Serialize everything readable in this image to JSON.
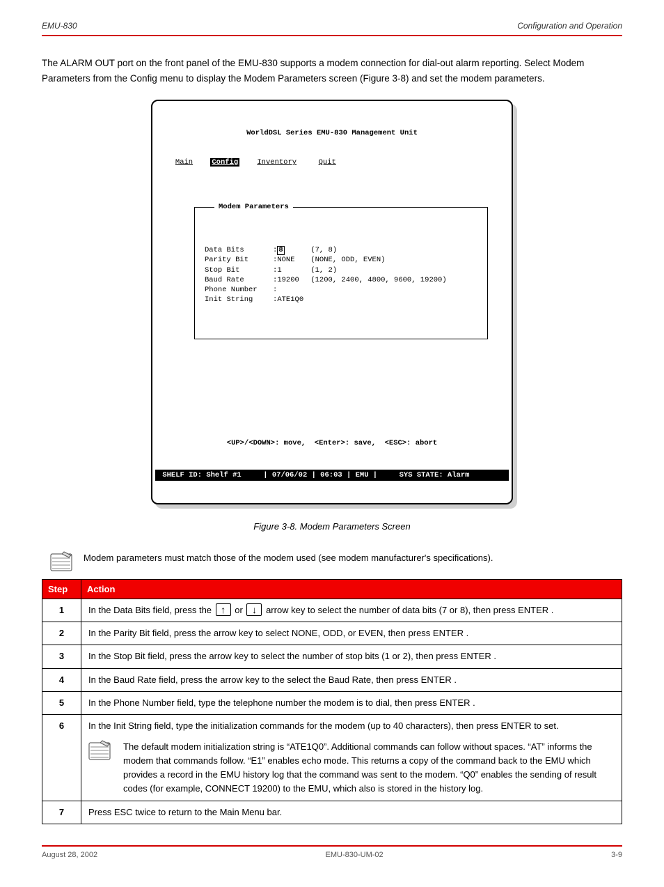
{
  "page": {
    "header_left": "EMU-830",
    "header_right": "Configuration and Operation",
    "footer_left": "August 28, 2002",
    "footer_center": "EMU-830-UM-02",
    "footer_right": "3-9"
  },
  "intro": "The ALARM OUT port on the front panel of the EMU-830 supports a modem connection for dial-out alarm reporting. Select Modem Parameters from the Config menu to display the Modem Parameters screen (Figure 3-8) and set the modem parameters.",
  "terminal": {
    "title": "WorldDSL Series EMU-830 Management Unit",
    "menu": {
      "main": "Main",
      "config": "Config",
      "inventory": "Inventory",
      "quit": "Quit"
    },
    "box_title": "Modem Parameters",
    "params": [
      {
        "label": "Data Bits",
        "value": "8",
        "hint": "(7, 8)"
      },
      {
        "label": "Parity Bit",
        "value": "NONE",
        "hint": "(NONE, ODD, EVEN)"
      },
      {
        "label": "Stop Bit",
        "value": "1",
        "hint": "(1, 2)"
      },
      {
        "label": "Baud Rate",
        "value": "19200",
        "hint": "(1200, 2400, 4800, 9600, 19200)"
      },
      {
        "label": "Phone Number",
        "value": "",
        "hint": ""
      },
      {
        "label": "Init String",
        "value": "ATE1Q0",
        "hint": ""
      }
    ],
    "keyhint": "<UP>/<DOWN>: move,  <Enter>: save,  <ESC>: abort",
    "status": {
      "shelf": "SHELF ID: Shelf #1",
      "date": "07/06/02",
      "time": "06:03",
      "emu": "EMU",
      "sys": "SYS STATE: Alarm"
    }
  },
  "figure_caption": "Figure 3-8.  Modem Parameters Screen",
  "note1": "Modem parameters must match those of the modem used (see modem manufacturer's specifications).",
  "table": {
    "headers": {
      "step": "Step",
      "action": "Action"
    },
    "rows": [
      {
        "n": "1",
        "action_html": "In the Data Bits field, press the <span class='arrow'>↑</span> or <span class='arrow'>↓</span> arrow key to select the number of data bits (7 or 8), then press <span class='sc'>ENTER</span> ."
      },
      {
        "n": "2",
        "action_html": "In the Parity Bit field, press the arrow key to select NONE, ODD, or EVEN, then press <span class='sc'>ENTER</span> ."
      },
      {
        "n": "3",
        "action_html": "In the Stop Bit field, press the arrow key to select the number of stop bits (1 or 2), then press <span class='sc'>ENTER</span> ."
      },
      {
        "n": "4",
        "action_html": "In the Baud Rate field, press the arrow key to the select the Baud Rate, then press <span class='sc'>ENTER</span> ."
      },
      {
        "n": "5",
        "action_html": "In the Phone Number field, type the telephone number the modem is to dial, then press <span class='sc'>ENTER</span> ."
      },
      {
        "n": "6",
        "action_html": "In the Init String field, type the initialization commands for the modem (up to 40 characters), then press <span class='sc'>ENTER</span> to set.<div class='step6-note'><span class='note-icon'><svg viewBox='0 0 34 30'><rect x='1' y='4' width='30' height='24' rx='2' fill='#fff' stroke='#444'/><line x1='3' y1='10' x2='29' y2='10' stroke='#888'/><line x1='3' y1='15' x2='29' y2='15' stroke='#888'/><line x1='3' y1='20' x2='29' y2='20' stroke='#888'/><line x1='3' y1='25' x2='29' y2='25' stroke='#888'/><path d='M20 1 l10 5 -3 3 -10 -5 z' fill='#ddd' stroke='#555'/></svg></span><span>The default modem initialization string is “ATE1Q0”. Additional commands can follow without spaces. “AT” informs the modem that commands follow. “E1” enables echo mode. This returns a copy of the command back to the EMU which provides a record in the EMU history log that the command was sent to the modem. “Q0” enables the sending of result codes (for example, CONNECT 19200) to the EMU, which also is stored in the history log.</span></div>"
      },
      {
        "n": "7",
        "action_html": "Press <span class='sc'>ESC</span> twice to return to the Main Menu bar."
      }
    ]
  },
  "colors": {
    "red_rule": "#d10000",
    "table_header_bg": "#f00000",
    "table_header_fg": "#ffffff",
    "terminal_shadow": "#cfcfcf"
  }
}
